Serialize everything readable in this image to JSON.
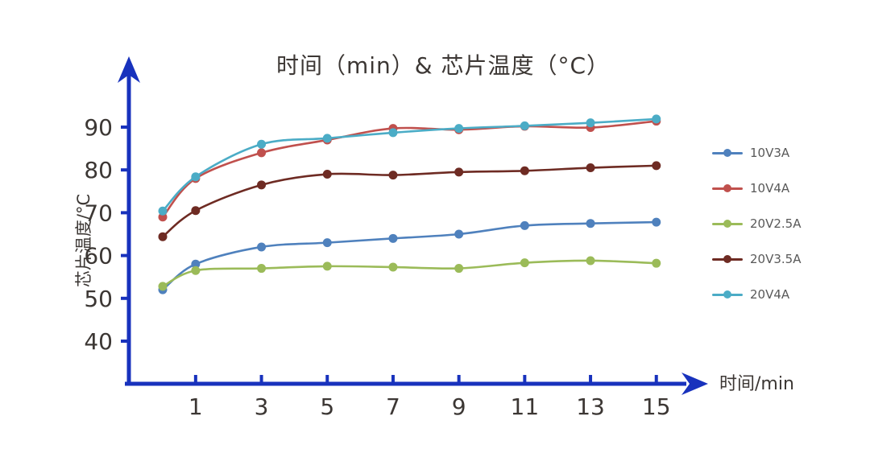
{
  "chart_data": {
    "type": "line",
    "title": "时间（min）& 芯片温度（°C）",
    "xlabel": "时间/min",
    "ylabel": "芯片温度/°C",
    "x": [
      0,
      1,
      3,
      5,
      7,
      9,
      11,
      13,
      15
    ],
    "x_ticks": [
      1,
      3,
      5,
      7,
      9,
      11,
      13,
      15
    ],
    "y_ticks": [
      40,
      50,
      60,
      70,
      80,
      90
    ],
    "xlim": [
      0,
      16.5
    ],
    "ylim": [
      30,
      100
    ],
    "grid": false,
    "legend_position": "right",
    "series": [
      {
        "name": "10V3A",
        "color": "#4f81bd",
        "values": [
          52,
          58,
          62,
          63,
          64,
          65,
          67,
          67.5,
          67.8
        ]
      },
      {
        "name": "10V4A",
        "color": "#c0504d",
        "values": [
          69,
          78,
          84,
          87,
          89.7,
          89.4,
          90.2,
          89.9,
          91.4
        ]
      },
      {
        "name": "20V2.5A",
        "color": "#9bbb59",
        "values": [
          52.8,
          56.5,
          57,
          57.5,
          57.3,
          57,
          58.3,
          58.8,
          58.2
        ]
      },
      {
        "name": "20V3.5A",
        "color": "#6e2b23",
        "values": [
          64.4,
          70.5,
          76.5,
          79,
          78.8,
          79.5,
          79.8,
          80.5,
          81
        ]
      },
      {
        "name": "20V4A",
        "color": "#4bacc6",
        "values": [
          70.4,
          78.4,
          86,
          87.4,
          88.7,
          89.7,
          90.3,
          91,
          91.9
        ]
      }
    ]
  },
  "colors": {
    "axis": "#1832bd",
    "tick_text": "#3c3734",
    "legend_text": "#595959",
    "background": "#ffffff"
  }
}
